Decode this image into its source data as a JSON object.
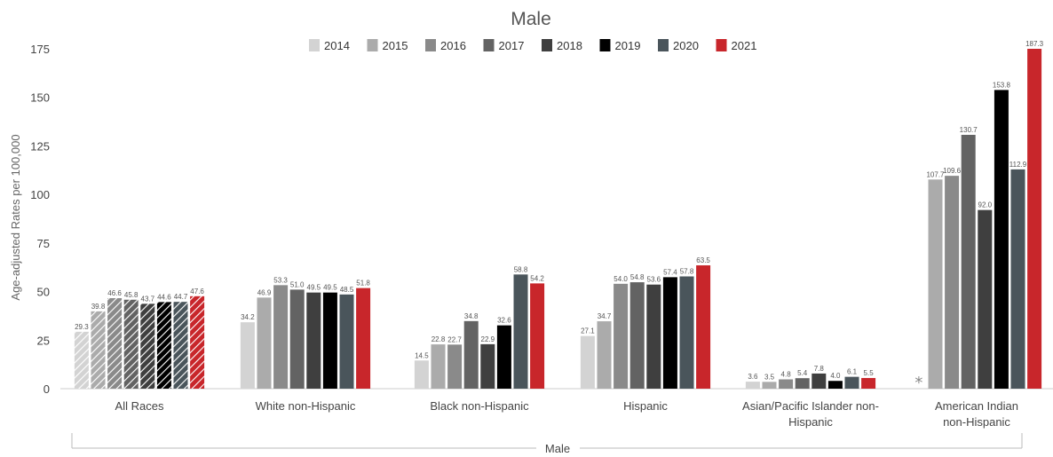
{
  "chart_data": {
    "type": "bar",
    "title": "Male",
    "xlabel": "Male",
    "ylabel": "Age-adjusted Rates per 100,000",
    "ylim": [
      0,
      175
    ],
    "yticks": [
      "0",
      "25",
      "50",
      "75",
      "100",
      "125",
      "150",
      "175"
    ],
    "legend_position": "top-center",
    "grid": false,
    "categories": [
      [
        "All Races"
      ],
      [
        "White non-Hispanic"
      ],
      [
        "Black non-Hispanic"
      ],
      [
        "Hispanic"
      ],
      [
        "Asian/Pacific Islander non-",
        "Hispanic"
      ],
      [
        "American Indian",
        "non-Hispanic"
      ]
    ],
    "hatched_category_index": 0,
    "missing_marker": "*",
    "series": [
      {
        "name": "2014",
        "color": "#d3d3d3",
        "values": [
          29.3,
          34.2,
          14.5,
          27.1,
          3.6,
          null
        ],
        "labels": [
          "29.3",
          "34.2",
          "14.5",
          "27.1",
          "3.6",
          ""
        ]
      },
      {
        "name": "2015",
        "color": "#ababab",
        "values": [
          39.8,
          46.9,
          22.8,
          34.7,
          3.5,
          107.7
        ],
        "labels": [
          "39.8",
          "46.9",
          "22.8",
          "34.7",
          "3.5",
          "107.7"
        ]
      },
      {
        "name": "2016",
        "color": "#8a8a8a",
        "values": [
          46.6,
          53.3,
          22.7,
          54.0,
          4.8,
          109.6
        ],
        "labels": [
          "46.6",
          "53.3",
          "22.7",
          "54.0",
          "4.8",
          "109.6"
        ]
      },
      {
        "name": "2017",
        "color": "#636363",
        "values": [
          45.8,
          51.0,
          34.8,
          54.8,
          5.4,
          130.7
        ],
        "labels": [
          "45.8",
          "51.0",
          "34.8",
          "54.8",
          "5.4",
          "130.7"
        ]
      },
      {
        "name": "2018",
        "color": "#3f3f3f",
        "values": [
          43.7,
          49.5,
          22.9,
          53.6,
          7.8,
          92.0
        ],
        "labels": [
          "43.7",
          "49.5",
          "22.9",
          "53.6",
          "7.8",
          "92.0"
        ]
      },
      {
        "name": "2019",
        "color": "#000000",
        "values": [
          44.6,
          49.5,
          32.6,
          57.4,
          4.0,
          153.8
        ],
        "labels": [
          "44.6",
          "49.5",
          "32.6",
          "57.4",
          "4.0",
          "153.8"
        ]
      },
      {
        "name": "2020",
        "color": "#4a555b",
        "values": [
          44.7,
          48.5,
          58.8,
          57.8,
          6.1,
          112.9
        ],
        "labels": [
          "44.7",
          "48.5",
          "58.8",
          "57.8",
          "6.1",
          "112.9"
        ]
      },
      {
        "name": "2021",
        "color": "#c8262b",
        "values": [
          47.6,
          51.8,
          54.2,
          63.5,
          5.5,
          187.3
        ],
        "labels": [
          "47.6",
          "51.8",
          "54.2",
          "63.5",
          "5.5",
          "187.3"
        ]
      }
    ]
  }
}
